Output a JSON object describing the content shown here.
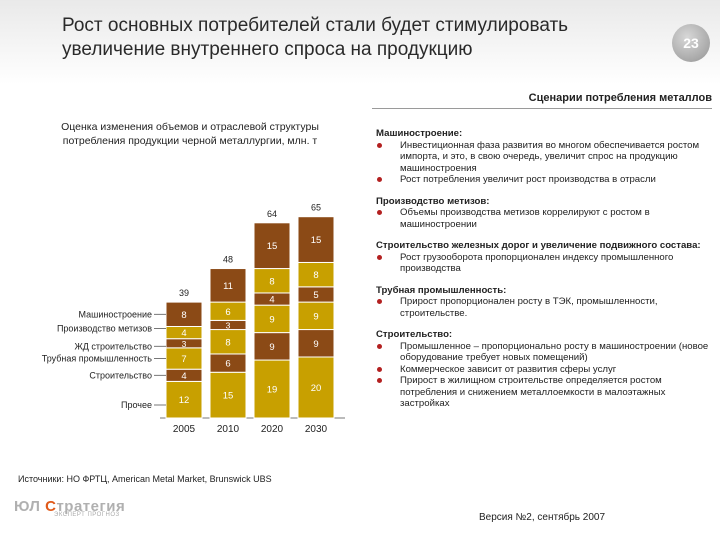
{
  "header": {
    "title_line1": "Рост основных потребителей стали будет стимулировать",
    "title_line2": "увеличение внутреннего спроса на продукцию",
    "page_number": "23"
  },
  "colors": {
    "bar_gold": "#c8a000",
    "bar_brown": "#8b4a16",
    "accent": "#b32020"
  },
  "chart": {
    "caption_line1": "Оценка изменения объемов и отраслевой структуры",
    "caption_line2": "потребления продукции черной металлургии, млн. т"
  },
  "chart_data": {
    "type": "bar",
    "stacked": true,
    "title": "Оценка изменения объемов и отраслевой структуры потребления продукции черной металлургии, млн. т",
    "categories": [
      "2005",
      "2010",
      "2020",
      "2030"
    ],
    "totals": [
      39,
      48,
      64,
      65
    ],
    "series": [
      {
        "name": "Прочее",
        "values": [
          12,
          15,
          19,
          20
        ]
      },
      {
        "name": "Строительство",
        "values": [
          4,
          6,
          9,
          9
        ]
      },
      {
        "name": "Трубная промышленность",
        "values": [
          7,
          8,
          9,
          9
        ]
      },
      {
        "name": "ЖД строительство",
        "values": [
          3,
          3,
          4,
          5
        ]
      },
      {
        "name": "Производство метизов",
        "values": [
          4,
          6,
          8,
          8
        ]
      },
      {
        "name": "Машиностроение",
        "values": [
          8,
          11,
          15,
          15
        ]
      }
    ],
    "legend_labels": [
      "Машиностроение",
      "Производство метизов",
      "ЖД строительство",
      "Трубная промышленность",
      "Строительство",
      "Прочее"
    ]
  },
  "scenarios": {
    "header": "Сценарии потребления металлов",
    "sections": [
      {
        "title": "Машиностроение:",
        "bullets": [
          "Инвестиционная фаза развития во многом обеспечивается ростом импорта, и это, в свою очередь, увеличит спрос на продукцию машиностроения",
          "Рост потребления увеличит рост производства в отрасли"
        ]
      },
      {
        "title": "Производство метизов:",
        "bullets": [
          "Объемы производства метизов коррелируют с ростом в машиностроении"
        ]
      },
      {
        "title": "Строительство железных дорог и увеличение подвижного состава:",
        "bullets": [
          "Рост грузооборота пропорционален индексу промышленного производства"
        ]
      },
      {
        "title": "Трубная промышленность:",
        "bullets": [
          "Прирост пропорционален росту в ТЭК, промышленности, строительстве."
        ]
      },
      {
        "title": "Строительство:",
        "bullets": [
          "Промышленное – пропорционально росту в машиностроении (новое оборудование требует новых помещений)",
          "Коммерческое зависит от развития сферы услуг",
          "Прирост в жилищном строительстве определяется ростом потребления и снижением металлоемкости в малоэтажных застройках"
        ]
      }
    ]
  },
  "footer": {
    "source": "Источники: НО ФРТЦ, American Metal Market, Brunswick UBS",
    "logo_prefix": "ЮЛ",
    "logo_accent": "С",
    "logo_rest": "тратегия",
    "logo_sub": "ЭКСПЕРТ ПРОГНОЗ",
    "version": "Версия №2, сентябрь 2007"
  }
}
